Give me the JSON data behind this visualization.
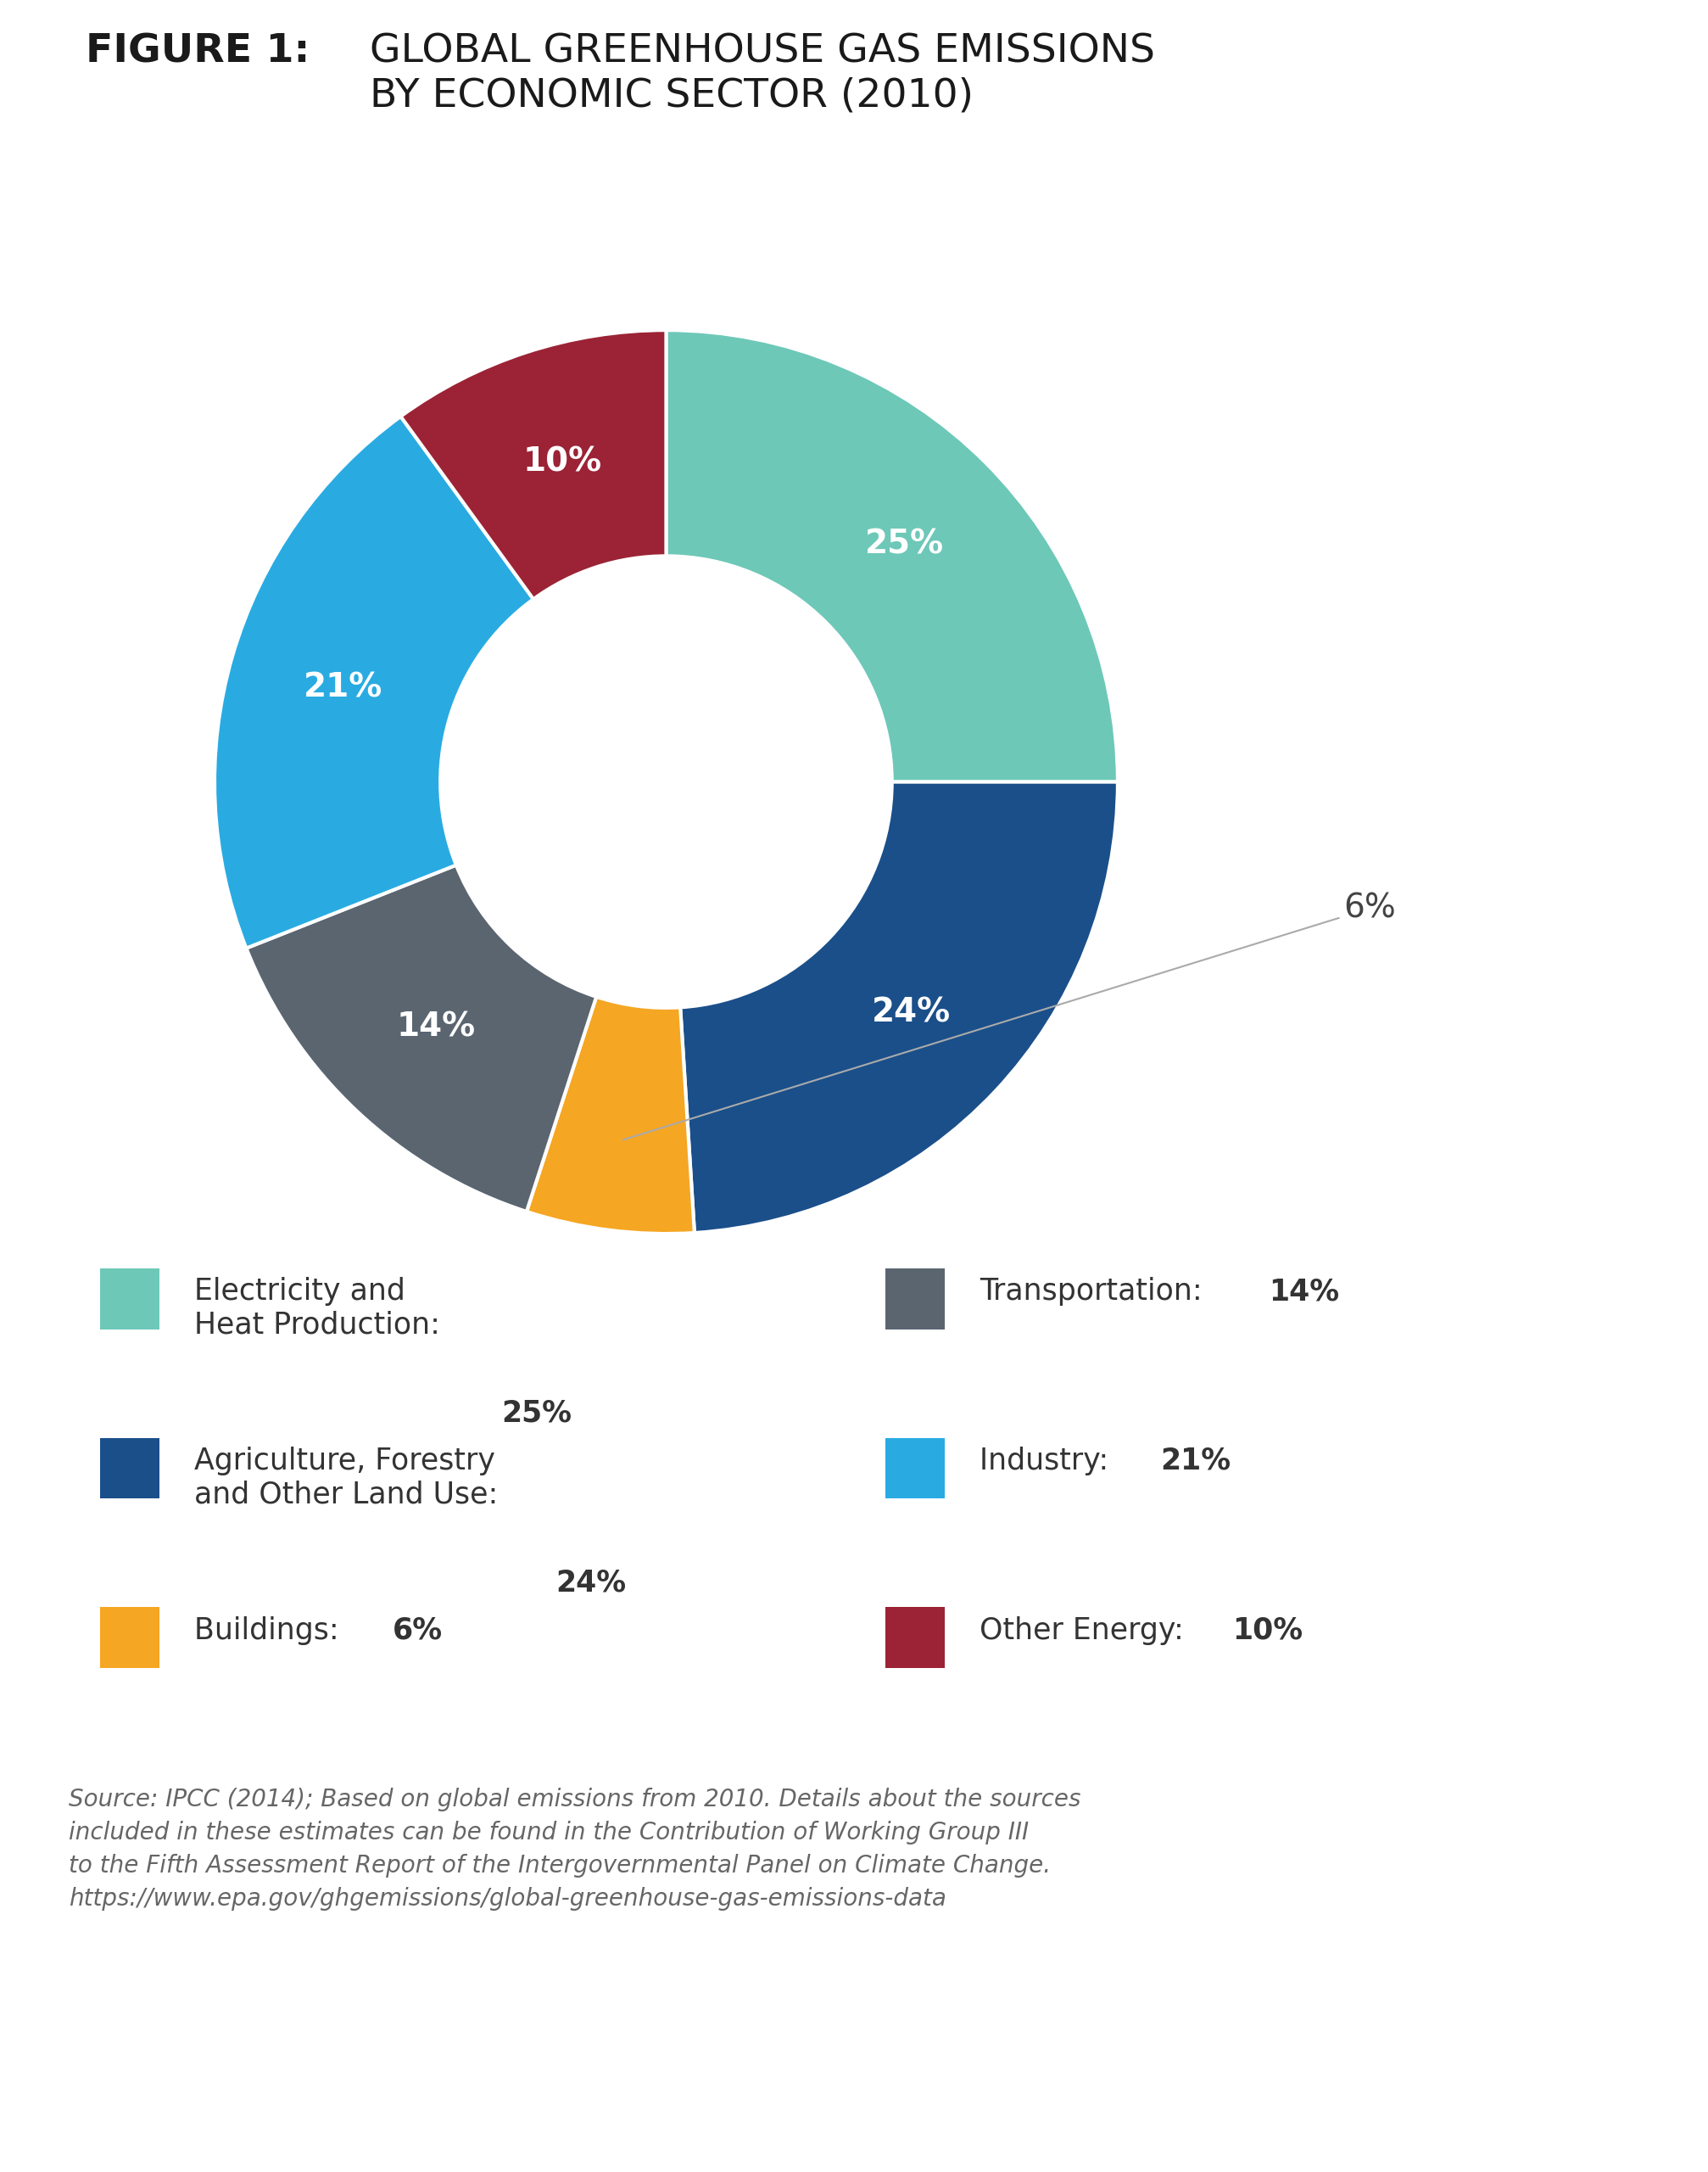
{
  "title_bold": "FIGURE 1:",
  "title_rest": "GLOBAL GREENHOUSE GAS EMISSIONS\nBY ECONOMIC SECTOR (2010)",
  "slices": [
    25,
    24,
    6,
    14,
    21,
    10
  ],
  "labels": [
    "25%",
    "24%",
    "6%",
    "14%",
    "21%",
    "10%"
  ],
  "colors": [
    "#6dc8b8",
    "#1a4f8a",
    "#f5a623",
    "#5a6570",
    "#29abe2",
    "#9b2335"
  ],
  "start_angle": 90,
  "legend_items": [
    {
      "label_normal": "Electricity and\nHeat Production: ",
      "label_bold": "25%",
      "color": "#6dc8b8"
    },
    {
      "label_normal": "Agriculture, Forestry\nand Other Land Use: ",
      "label_bold": "24%",
      "color": "#1a4f8a"
    },
    {
      "label_normal": "Buildings: ",
      "label_bold": "6%",
      "color": "#f5a623"
    },
    {
      "label_normal": "Transportation: ",
      "label_bold": "14%",
      "color": "#5a6570"
    },
    {
      "label_normal": "Industry: ",
      "label_bold": "21%",
      "color": "#29abe2"
    },
    {
      "label_normal": "Other Energy: ",
      "label_bold": "10%",
      "color": "#9b2335"
    }
  ],
  "source_line1": "Source: IPCC (2014); Based on global emissions from 2010. Details about the sources",
  "source_line2": "included in these estimates can be found in the Contribution of Working Group III",
  "source_line3": "to the Fifth Assessment Report of the Intergovernmental Panel on Climate Change.",
  "source_line4": "https://www.epa.gov/ghgemissions/global-greenhouse-gas-emissions-data",
  "background_color": "#ffffff",
  "text_color": "#1a1a1a",
  "source_color": "#666666"
}
